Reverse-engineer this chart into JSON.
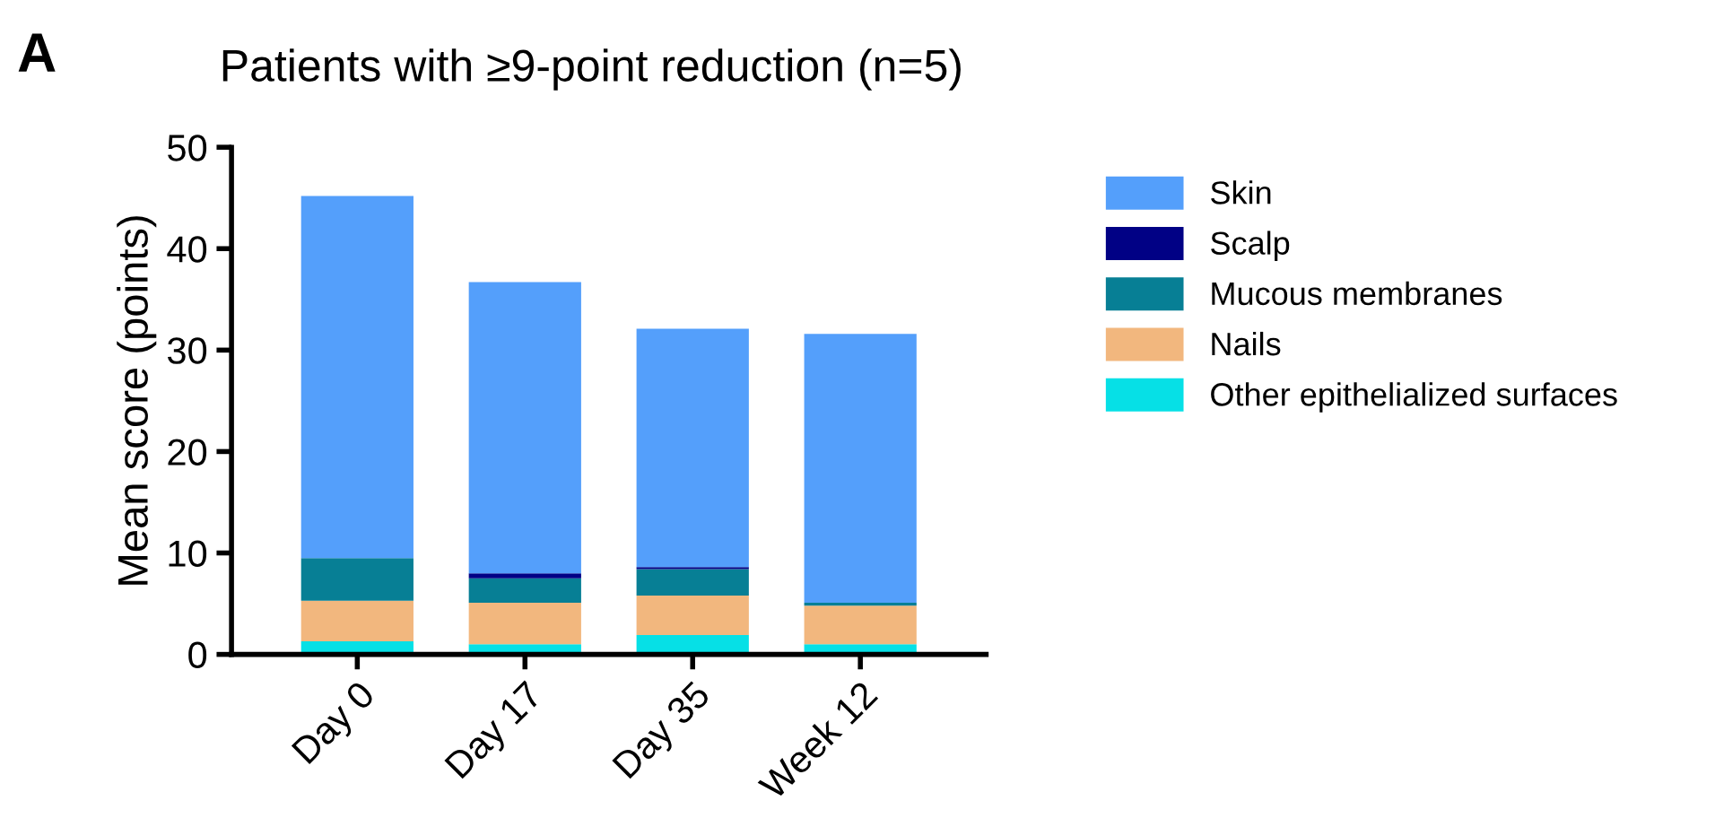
{
  "chart_data": {
    "type": "bar",
    "title": "Patients with ≥9-point reduction (n=5)",
    "ylabel": "Mean score (points)",
    "annotations": [
      "A"
    ],
    "categories": [
      "Day 0",
      "Day 17",
      "Day 35",
      "Week 12"
    ],
    "stacked": true,
    "series": [
      {
        "name": "Other epithelialized surfaces",
        "color": "#06e0e6",
        "values": [
          1.3,
          1.0,
          1.9,
          1.0
        ]
      },
      {
        "name": "Nails",
        "color": "#f2b77e",
        "values": [
          4.0,
          4.1,
          3.9,
          3.8
        ]
      },
      {
        "name": "Mucous membranes",
        "color": "#077f95",
        "values": [
          4.2,
          2.4,
          2.6,
          0.3
        ]
      },
      {
        "name": "Scalp",
        "color": "#010185",
        "values": [
          0,
          0.5,
          0.2,
          0
        ]
      },
      {
        "name": "Skin",
        "color": "#549ffb",
        "values": [
          35.7,
          28.7,
          23.5,
          26.5
        ]
      }
    ],
    "ylim": [
      0,
      50
    ],
    "yticks": [
      0,
      10,
      20,
      30,
      40,
      50
    ],
    "grid": false,
    "legend": "right"
  }
}
